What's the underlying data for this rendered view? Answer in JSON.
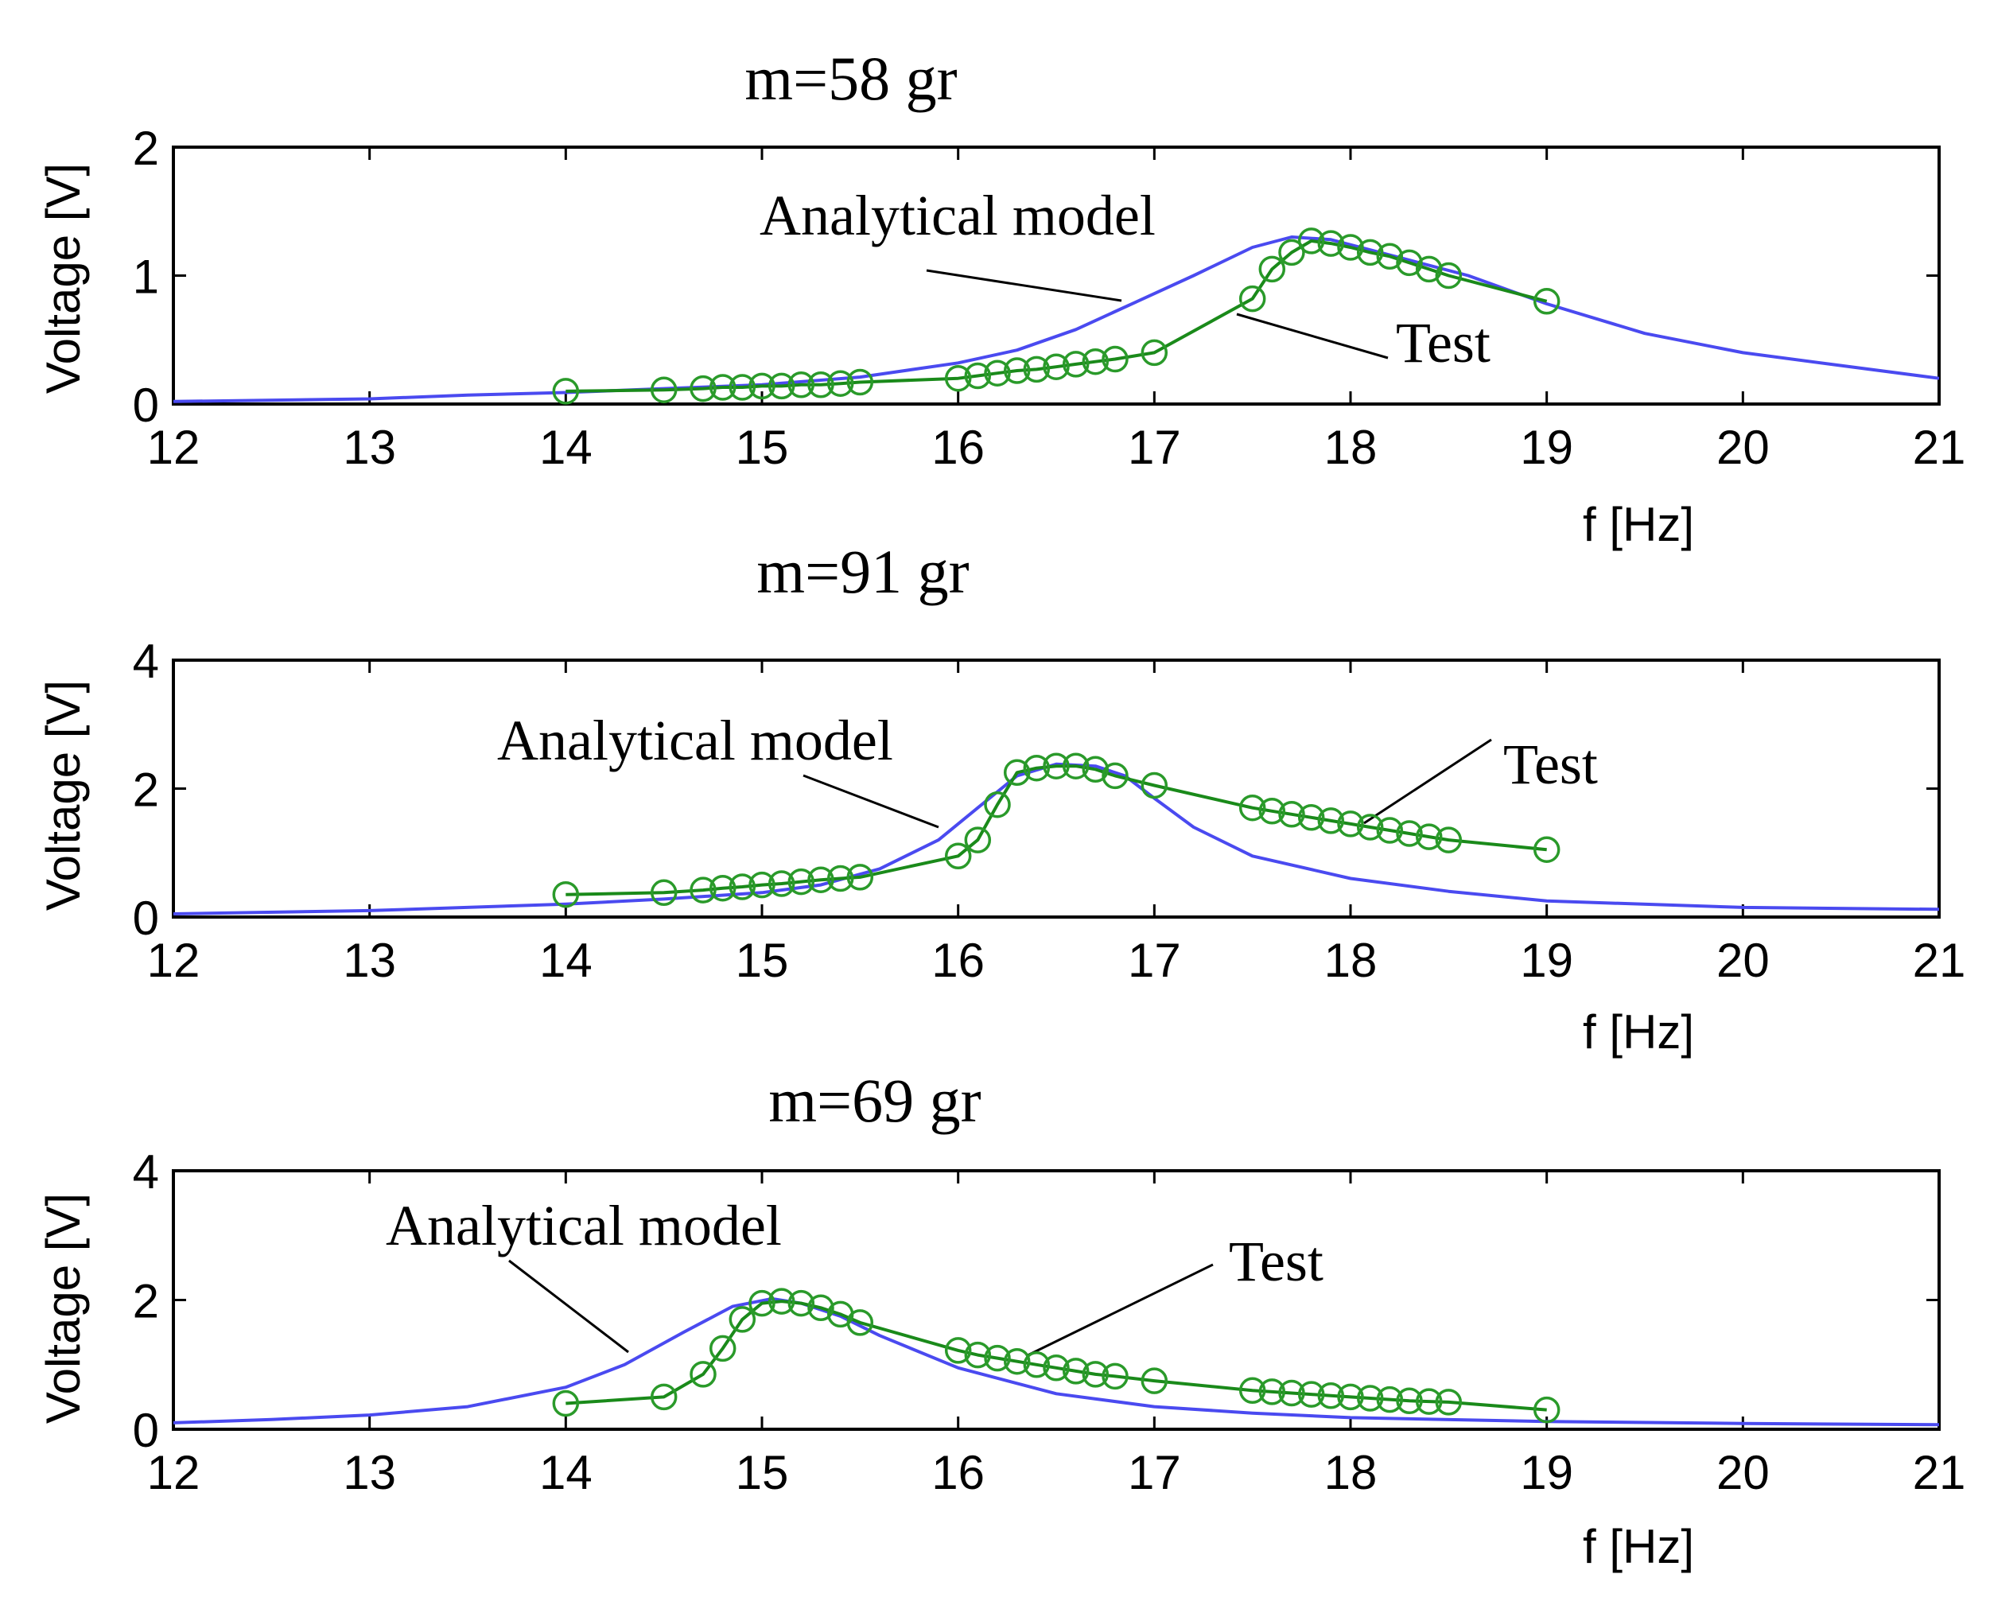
{
  "chart_data": [
    {
      "type": "line",
      "title": "m=58 gr",
      "xlabel": "f [Hz]",
      "ylabel": "Voltage [V]",
      "xlim": [
        12,
        21
      ],
      "ylim": [
        0,
        2
      ],
      "xticks": [
        12,
        13,
        14,
        15,
        16,
        17,
        18,
        19,
        20,
        21
      ],
      "yticks": [
        0,
        1,
        2
      ],
      "annotations": [
        "Analytical model",
        "Test"
      ],
      "series": [
        {
          "name": "Analytical model",
          "color": "#4a4af0",
          "x": [
            12,
            13,
            13.5,
            14,
            14.5,
            15,
            15.5,
            16,
            16.3,
            16.6,
            16.9,
            17.2,
            17.5,
            17.7,
            17.9,
            18.1,
            18.3,
            18.6,
            19,
            19.5,
            20,
            20.5,
            21
          ],
          "y": [
            0.02,
            0.04,
            0.07,
            0.09,
            0.12,
            0.15,
            0.21,
            0.32,
            0.42,
            0.58,
            0.79,
            1.0,
            1.22,
            1.3,
            1.28,
            1.2,
            1.12,
            1.0,
            0.78,
            0.55,
            0.4,
            0.3,
            0.2
          ]
        },
        {
          "name": "Test",
          "color": "#1a8a1a",
          "x": [
            14,
            14.5,
            14.7,
            14.8,
            14.9,
            15,
            15.1,
            15.2,
            15.3,
            15.4,
            15.5,
            16,
            16.1,
            16.2,
            16.3,
            16.4,
            16.5,
            16.6,
            16.7,
            16.8,
            17,
            17.5,
            17.6,
            17.7,
            17.8,
            17.9,
            18,
            18.1,
            18.2,
            18.3,
            18.4,
            18.5,
            19
          ],
          "y": [
            0.1,
            0.11,
            0.12,
            0.13,
            0.13,
            0.14,
            0.14,
            0.15,
            0.15,
            0.16,
            0.17,
            0.2,
            0.22,
            0.24,
            0.26,
            0.27,
            0.29,
            0.31,
            0.33,
            0.35,
            0.4,
            0.82,
            1.05,
            1.18,
            1.27,
            1.25,
            1.22,
            1.18,
            1.15,
            1.1,
            1.05,
            1.0,
            0.8
          ]
        }
      ]
    },
    {
      "type": "line",
      "title": "m=91 gr",
      "xlabel": "f [Hz]",
      "ylabel": "Voltage [V]",
      "xlim": [
        12,
        21
      ],
      "ylim": [
        0,
        4
      ],
      "xticks": [
        12,
        13,
        14,
        15,
        16,
        17,
        18,
        19,
        20,
        21
      ],
      "yticks": [
        0,
        2,
        4
      ],
      "annotations": [
        "Analytical model",
        "Test"
      ],
      "series": [
        {
          "name": "Analytical model",
          "color": "#4a4af0",
          "x": [
            12,
            13,
            14,
            14.5,
            15,
            15.3,
            15.6,
            15.9,
            16.1,
            16.3,
            16.5,
            16.7,
            16.85,
            17,
            17.2,
            17.5,
            18,
            18.5,
            19,
            20,
            21
          ],
          "y": [
            0.05,
            0.1,
            0.2,
            0.28,
            0.38,
            0.5,
            0.75,
            1.2,
            1.7,
            2.2,
            2.38,
            2.35,
            2.2,
            1.85,
            1.4,
            0.95,
            0.6,
            0.4,
            0.25,
            0.15,
            0.12
          ]
        },
        {
          "name": "Test",
          "color": "#1a8a1a",
          "x": [
            14,
            14.5,
            14.7,
            14.8,
            14.9,
            15,
            15.1,
            15.2,
            15.3,
            15.4,
            15.5,
            16,
            16.1,
            16.2,
            16.3,
            16.4,
            16.5,
            16.6,
            16.7,
            16.8,
            17,
            17.5,
            17.6,
            17.7,
            17.8,
            17.9,
            18,
            18.1,
            18.2,
            18.3,
            18.4,
            18.5,
            19
          ],
          "y": [
            0.35,
            0.38,
            0.42,
            0.45,
            0.47,
            0.5,
            0.52,
            0.55,
            0.58,
            0.6,
            0.62,
            0.95,
            1.2,
            1.75,
            2.25,
            2.32,
            2.35,
            2.35,
            2.3,
            2.2,
            2.05,
            1.7,
            1.65,
            1.6,
            1.55,
            1.5,
            1.45,
            1.4,
            1.35,
            1.3,
            1.25,
            1.2,
            1.05
          ]
        }
      ]
    },
    {
      "type": "line",
      "title": "m=69 gr",
      "xlabel": "f [Hz]",
      "ylabel": "Voltage [V]",
      "xlim": [
        12,
        21
      ],
      "ylim": [
        0,
        4
      ],
      "xticks": [
        12,
        13,
        14,
        15,
        16,
        17,
        18,
        19,
        20,
        21
      ],
      "yticks": [
        0,
        2,
        4
      ],
      "annotations": [
        "Analytical model",
        "Test"
      ],
      "series": [
        {
          "name": "Analytical model",
          "color": "#4a4af0",
          "x": [
            12,
            12.5,
            13,
            13.5,
            14,
            14.3,
            14.6,
            14.85,
            15.05,
            15.2,
            15.4,
            15.6,
            16,
            16.5,
            17,
            17.5,
            18,
            19,
            20,
            21
          ],
          "y": [
            0.1,
            0.15,
            0.22,
            0.35,
            0.65,
            1.0,
            1.5,
            1.9,
            2.02,
            1.95,
            1.75,
            1.45,
            0.95,
            0.55,
            0.35,
            0.25,
            0.18,
            0.12,
            0.09,
            0.07
          ]
        },
        {
          "name": "Test",
          "color": "#1a8a1a",
          "x": [
            14,
            14.5,
            14.7,
            14.8,
            14.9,
            15,
            15.1,
            15.2,
            15.3,
            15.4,
            15.5,
            16,
            16.1,
            16.2,
            16.3,
            16.4,
            16.5,
            16.6,
            16.7,
            16.8,
            17,
            17.5,
            17.6,
            17.7,
            17.8,
            17.9,
            18,
            18.1,
            18.2,
            18.3,
            18.4,
            18.5,
            19
          ],
          "y": [
            0.4,
            0.5,
            0.85,
            1.25,
            1.7,
            1.95,
            1.98,
            1.95,
            1.88,
            1.78,
            1.65,
            1.22,
            1.15,
            1.1,
            1.05,
            1.0,
            0.95,
            0.9,
            0.85,
            0.82,
            0.75,
            0.6,
            0.58,
            0.56,
            0.54,
            0.52,
            0.5,
            0.48,
            0.46,
            0.44,
            0.43,
            0.42,
            0.3
          ]
        }
      ]
    }
  ]
}
